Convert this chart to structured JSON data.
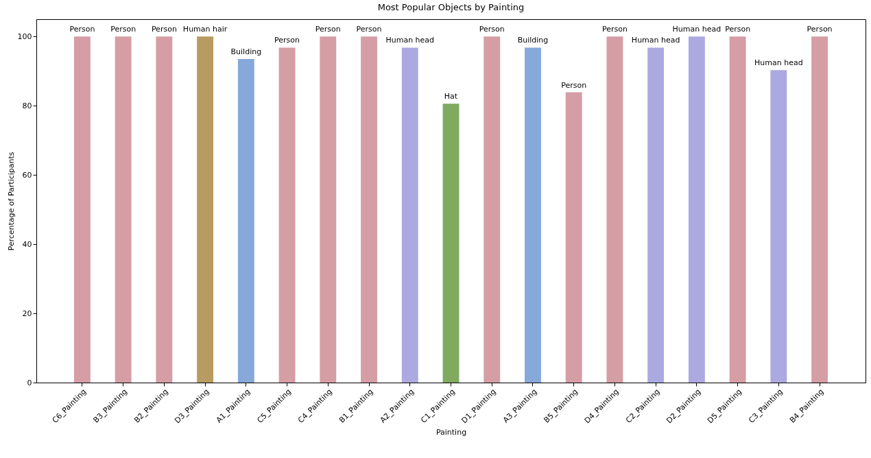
{
  "chart_data": {
    "type": "bar",
    "title": "Most Popular Objects by Painting",
    "xlabel": "Painting",
    "ylabel": "Percentage of Participants",
    "categories": [
      "C6_Painting",
      "B3_Painting",
      "B2_Painting",
      "D3_Painting",
      "A1_Painting",
      "C5_Painting",
      "C4_Painting",
      "B1_Painting",
      "A2_Painting",
      "C1_Painting",
      "D1_Painting",
      "A3_Painting",
      "B5_Painting",
      "D4_Painting",
      "C2_Painting",
      "D2_Painting",
      "D5_Painting",
      "C3_Painting",
      "B4_Painting"
    ],
    "values": [
      100,
      100,
      100,
      100,
      93.5,
      96.8,
      100,
      100,
      96.8,
      80.6,
      100,
      96.8,
      83.9,
      100,
      96.8,
      100,
      100,
      90.3,
      100
    ],
    "colors": [
      "#d59ea4",
      "#d59ea4",
      "#d59ea4",
      "#b89b60",
      "#86a9da",
      "#d59ea4",
      "#d59ea4",
      "#d59ea4",
      "#aca9e0",
      "#7faa60",
      "#d59ea4",
      "#86a9da",
      "#d59ea4",
      "#d59ea4",
      "#aca9e0",
      "#aca9e0",
      "#d59ea4",
      "#aca9e0",
      "#d59ea4"
    ],
    "ylim": [
      0,
      105
    ],
    "yticks": [
      0,
      20,
      40,
      60,
      80,
      100
    ],
    "grid": false,
    "annotations": [
      {
        "text": "Person",
        "x": "C6_Painting",
        "y": 100
      },
      {
        "text": "Person",
        "x": "B3_Painting",
        "y": 100
      },
      {
        "text": "Person",
        "x": "B2_Painting",
        "y": 100
      },
      {
        "text": "Human hair",
        "x": "D3_Painting",
        "y": 100
      },
      {
        "text": "Building",
        "x": "A1_Painting",
        "y": 93.5
      },
      {
        "text": "Person",
        "x": "C5_Painting",
        "y": 96.8
      },
      {
        "text": "Person",
        "x": "C4_Painting",
        "y": 100
      },
      {
        "text": "Person",
        "x": "B1_Painting",
        "y": 100
      },
      {
        "text": "Human head",
        "x": "A2_Painting",
        "y": 96.8
      },
      {
        "text": "Hat",
        "x": "C1_Painting",
        "y": 80.6
      },
      {
        "text": "Person",
        "x": "D1_Painting",
        "y": 100
      },
      {
        "text": "Building",
        "x": "A3_Painting",
        "y": 96.8
      },
      {
        "text": "Person",
        "x": "B5_Painting",
        "y": 83.9
      },
      {
        "text": "Person",
        "x": "D4_Painting",
        "y": 100
      },
      {
        "text": "Human head",
        "x": "C2_Painting",
        "y": 96.8
      },
      {
        "text": "Human head",
        "x": "D2_Painting",
        "y": 100
      },
      {
        "text": "Person",
        "x": "D5_Painting",
        "y": 100
      },
      {
        "text": "Human head",
        "x": "C3_Painting",
        "y": 90.3
      },
      {
        "text": "Person",
        "x": "B4_Painting",
        "y": 100
      }
    ]
  }
}
